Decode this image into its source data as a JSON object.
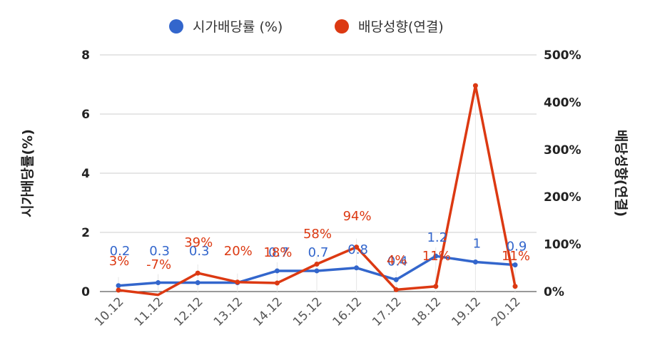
{
  "chart_data": {
    "type": "line",
    "categories": [
      "10.12",
      "11.12",
      "12.12",
      "13.12",
      "14.12",
      "15.12",
      "16.12",
      "17.12",
      "18.12",
      "19.12",
      "20.12"
    ],
    "series": [
      {
        "name": "시가배당률 (%)",
        "axis": "left",
        "color": "#3366cc",
        "values": [
          0.2,
          0.3,
          0.3,
          0.3,
          0.7,
          0.7,
          0.8,
          0.4,
          1.2,
          1.0,
          0.9
        ],
        "labels": [
          "0.2",
          "0.3",
          "0.3",
          "",
          "0.7",
          "0.7",
          "0.8",
          "0.4",
          "1.2",
          "1",
          "0.9"
        ]
      },
      {
        "name": "배당성향(연결)",
        "axis": "right",
        "color": "#dc3912",
        "values": [
          3,
          -7,
          39,
          20,
          18,
          58,
          94,
          4,
          11,
          435,
          11
        ],
        "labels": [
          "3%",
          "-7%",
          "39%",
          "20%",
          "18%",
          "58%",
          "94%",
          "4%",
          "11%",
          "",
          "11%"
        ]
      }
    ],
    "y_left": {
      "title": "시가배당률(%)",
      "range": [
        0,
        8
      ],
      "ticks": [
        "0",
        "2",
        "4",
        "6",
        "8"
      ]
    },
    "y_right": {
      "title": "배당성향(연결)",
      "range": [
        0,
        500
      ],
      "ticks": [
        "0%",
        "100%",
        "200%",
        "300%",
        "400%",
        "500%"
      ]
    },
    "grid": true,
    "legend": "top"
  }
}
